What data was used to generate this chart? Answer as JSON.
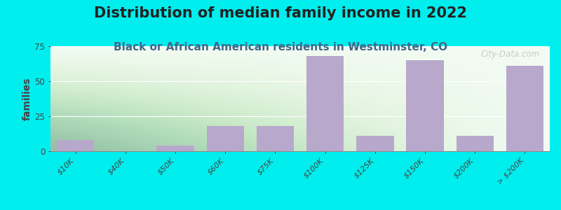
{
  "title": "Distribution of median family income in 2022",
  "subtitle": "Black or African American residents in Westminster, CO",
  "ylabel": "families",
  "categories": [
    "$10K",
    "$40K",
    "$50K",
    "$60K",
    "$75K",
    "$100K",
    "$125K",
    "$150K",
    "$200K",
    "> $200K"
  ],
  "values": [
    8,
    0,
    4,
    18,
    18,
    68,
    11,
    65,
    11,
    61
  ],
  "bar_color": "#b8a8cc",
  "background_color": "#00eeee",
  "ylim": [
    0,
    75
  ],
  "yticks": [
    0,
    25,
    50,
    75
  ],
  "title_fontsize": 15,
  "subtitle_fontsize": 11,
  "ylabel_fontsize": 10,
  "watermark": "City-Data.com"
}
